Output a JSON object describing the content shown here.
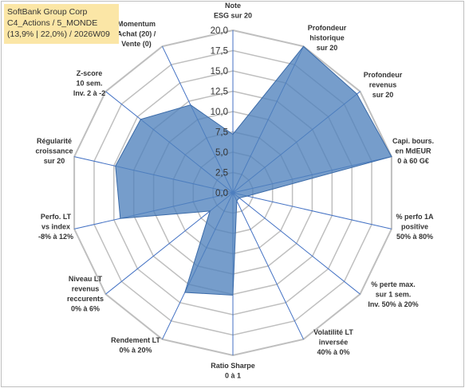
{
  "title": {
    "line1": "SoftBank Group Corp",
    "line2": "C4_Actions / 5_MONDE",
    "line3": "(13,9% | 22,0%) / 2026W09"
  },
  "chart_data": {
    "type": "radar",
    "title": "SoftBank Group Corp",
    "rmin": 0,
    "rmax": 20,
    "tick_step": 2.5,
    "tick_labels": [
      "0,0",
      "2,5",
      "5,0",
      "7,5",
      "10,0",
      "12,5",
      "15,0",
      "17,5",
      "20,0"
    ],
    "categories": [
      [
        "Note",
        "ESG sur 20"
      ],
      [
        "Profondeur",
        "historique",
        "sur 20"
      ],
      [
        "Profondeur",
        "revenus",
        "sur 20"
      ],
      [
        "Capi. bours.",
        "en MdEUR",
        "0 à 60 G€"
      ],
      [
        "% perfo 1A",
        "positive",
        "50% à 80%"
      ],
      [
        "% perte max.",
        "sur 1 sem.",
        "Inv. 50% à 20%"
      ],
      [
        "Volatilité LT",
        "inversée",
        "40% à 0%"
      ],
      [
        "Ratio Sharpe",
        "0 à 1"
      ],
      [
        "Rendement LT",
        "0% à 20%"
      ],
      [
        "Niveau LT",
        "revenus",
        "reccurents",
        "0% à 6%"
      ],
      [
        "Perfo. LT",
        "vs index",
        "-8% à 12%"
      ],
      [
        "Régularité",
        "croissance",
        "sur 20"
      ],
      [
        "Z-score",
        "10 sem.",
        "Inv. 2 à -2"
      ],
      [
        "Momentum",
        "Achat (20) /",
        "Vente (0)"
      ]
    ],
    "series": [
      {
        "values": [
          7.2,
          20.0,
          19.5,
          20.0,
          1.8,
          1.0,
          1.1,
          12.6,
          13.6,
          3.6,
          14.2,
          14.8,
          14.5,
          12.0
        ]
      }
    ],
    "fill_color": "#4f81bd",
    "fill_opacity": 0.78,
    "grid_color": "#bfbfbf",
    "axis_color": "#4472c4",
    "grid": true,
    "legend": "none"
  }
}
